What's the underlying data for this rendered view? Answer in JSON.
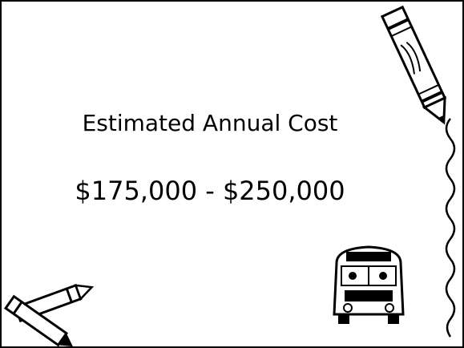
{
  "slide": {
    "title": "Estimated Annual Cost",
    "body": "$175,000 - $250,000"
  }
}
